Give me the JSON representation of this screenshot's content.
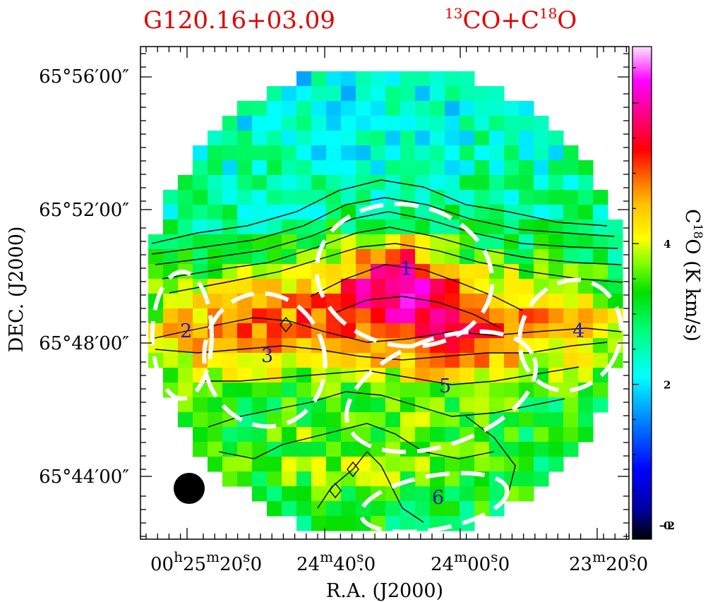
{
  "chart_data": {
    "type": "heatmap",
    "title": {
      "source": "G120.16+03.09",
      "tracer_main": "CO+C",
      "tracer_sup1": "13",
      "tracer_sup2": "18",
      "tracer_tail": "O"
    },
    "xlabel": "R.A. (J2000)",
    "ylabel": "DEC. (J2000)",
    "colorbar": {
      "label_main": "C",
      "label_sup": "18",
      "label_rest": "O (K km/s)",
      "ticks": [
        "4",
        "2",
        "0",
        "−2"
      ],
      "tick_values": [
        4,
        2,
        0,
        -2
      ],
      "range": [
        -2.2,
        4.8
      ]
    },
    "x_tick_labels": [
      {
        "id": "ra-25-20",
        "h": "00",
        "hs": "h",
        "m": "25",
        "ms": "m",
        "s": "20",
        "ss": "s",
        "f": ".0"
      },
      {
        "id": "ra-24-40",
        "m": "24",
        "ms": "m",
        "s": "40",
        "ss": "s",
        "f": ".0"
      },
      {
        "id": "ra-24-00",
        "m": "24",
        "ms": "m",
        "s": "00",
        "ss": "s",
        "f": ".0"
      },
      {
        "id": "ra-23-20",
        "m": "23",
        "ms": "m",
        "s": "20",
        "ss": "s",
        "f": ".0"
      }
    ],
    "y_tick_labels": [
      "65°56′00″",
      "65°52′00″",
      "65°48′00″",
      "65°44′00″"
    ],
    "clump_labels": [
      "1",
      "2",
      "3",
      "4",
      "5",
      "6"
    ],
    "grid": false,
    "contours": true,
    "map_description": "Integrated C18O intensity; peak emission in an east-west ridge near the map centre, weaker emission to the north and south"
  },
  "colors": {
    "title": "#e00000",
    "clump_labels": "#1c1cc8",
    "ellipses": "#ffffff",
    "contours": "#000000",
    "beam": "#000000"
  }
}
